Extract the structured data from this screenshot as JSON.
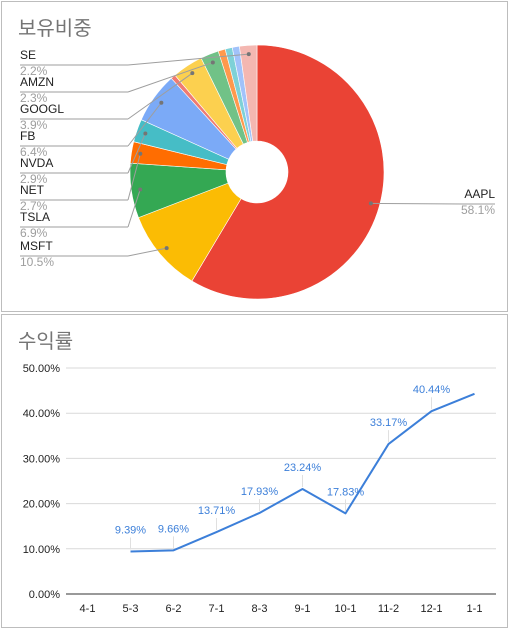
{
  "chart_data": [
    {
      "type": "pie",
      "title": "보유비중",
      "slices": [
        {
          "label": "AAPL",
          "value": 58.1,
          "value_label": "58.1%",
          "color": "#ea4335"
        },
        {
          "label": "MSFT",
          "value": 10.5,
          "value_label": "10.5%",
          "color": "#fbbc04"
        },
        {
          "label": "TSLA",
          "value": 6.9,
          "value_label": "6.9%",
          "color": "#34a853"
        },
        {
          "label": "NET",
          "value": 2.7,
          "value_label": "2.7%",
          "color": "#ff6d01"
        },
        {
          "label": "NVDA",
          "value": 2.9,
          "value_label": "2.9%",
          "color": "#46bdc6"
        },
        {
          "label": "FB",
          "value": 6.4,
          "value_label": "6.4%",
          "color": "#7baaf7"
        },
        {
          "label": "",
          "value": 0.6,
          "value_label": "",
          "color": "#f07b72"
        },
        {
          "label": "GOOGL",
          "value": 3.9,
          "value_label": "3.9%",
          "color": "#fcd04f"
        },
        {
          "label": "AMZN",
          "value": 2.3,
          "value_label": "2.3%",
          "color": "#71c287"
        },
        {
          "label": "",
          "value": 0.9,
          "value_label": "",
          "color": "#ff994d"
        },
        {
          "label": "",
          "value": 0.9,
          "value_label": "",
          "color": "#7ed1d7"
        },
        {
          "label": "",
          "value": 0.9,
          "value_label": "",
          "color": "#a1c2fa"
        },
        {
          "label": "SE",
          "value": 2.2,
          "value_label": "2.2%",
          "color": "#f4b7b1"
        }
      ],
      "legend": "callout labels"
    },
    {
      "type": "line",
      "title": "수익률",
      "categories": [
        "4-1",
        "5-3",
        "6-2",
        "7-1",
        "8-3",
        "9-1",
        "10-1",
        "11-2",
        "12-1",
        "1-1"
      ],
      "series": [
        {
          "name": "",
          "color": "#3c7fd9",
          "values": [
            null,
            9.39,
            9.66,
            13.71,
            17.93,
            23.24,
            17.83,
            33.17,
            40.44,
            44.3
          ],
          "data_labels": [
            "",
            "9.39%",
            "9.66%",
            "13.71%",
            "17.93%",
            "23.24%",
            "17.83%",
            "33.17%",
            "40.44%",
            ""
          ]
        }
      ],
      "y_ticks": [
        "0.00%",
        "10.00%",
        "20.00%",
        "30.00%",
        "40.00%",
        "50.00%"
      ],
      "ylim": [
        0,
        50
      ],
      "grid": true
    }
  ]
}
